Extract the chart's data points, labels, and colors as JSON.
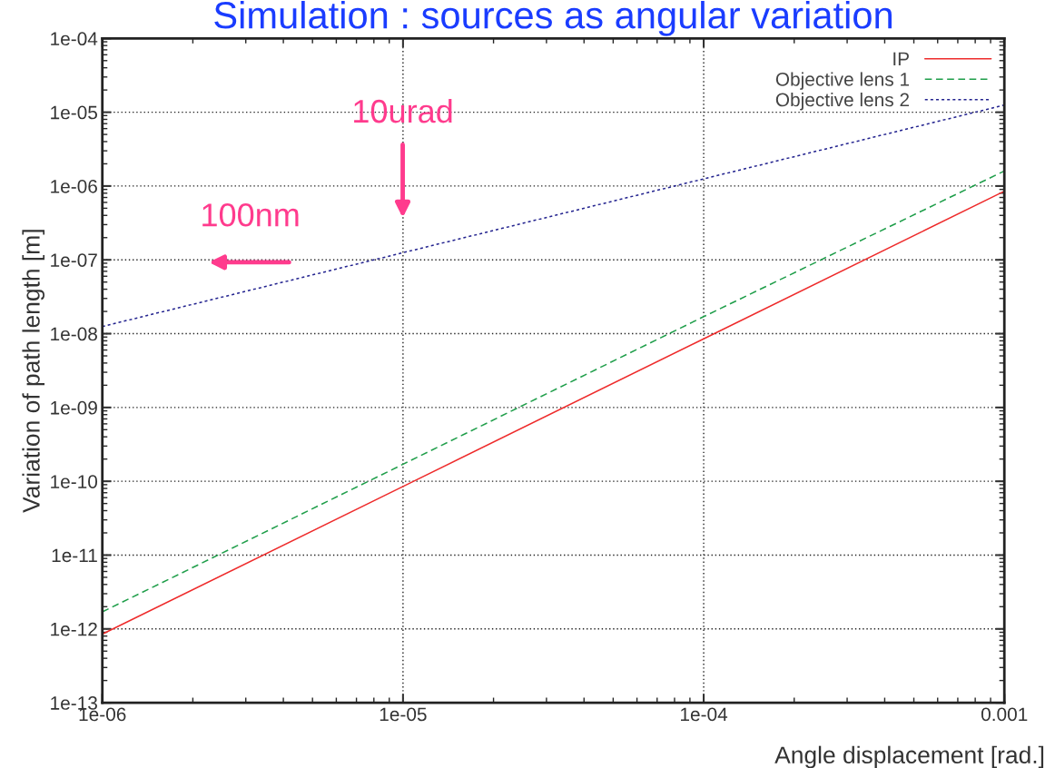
{
  "chart_data": {
    "type": "line",
    "title": "Simulation : sources as angular variation",
    "xlabel": "Angle displacement [rad.]",
    "ylabel": "Variation of path length [m]",
    "x": [
      1e-06,
      1e-05,
      0.0001,
      0.001
    ],
    "series": [
      {
        "name": "IP",
        "color": "#ee2b2b",
        "line_style": "solid",
        "values": [
          8.5e-13,
          8.5e-11,
          8.5e-09,
          8.5e-07
        ]
      },
      {
        "name": "Objective lens 1",
        "color": "#1f9e4a",
        "line_style": "dashed",
        "values": [
          1.7e-12,
          1.7e-10,
          1.7e-08,
          1.6e-06
        ]
      },
      {
        "name": "Objective lens 2",
        "color": "#23238f",
        "line_style": "dotted",
        "values": [
          1.25e-08,
          1.25e-07,
          1.25e-06,
          1.25e-05
        ]
      }
    ],
    "log": "xy",
    "xlim": [
      1e-06,
      0.001
    ],
    "ylim": [
      1e-13,
      0.0001
    ],
    "xticks": [
      {
        "value": 1e-06,
        "label": "1e-06"
      },
      {
        "value": 1e-05,
        "label": "1e-05"
      },
      {
        "value": 0.0001,
        "label": "1e-04"
      },
      0.001
    ],
    "yticks": [
      {
        "value": 1e-13,
        "label": "1e-13"
      },
      {
        "value": 1e-12,
        "label": "1e-12"
      },
      {
        "value": 1e-11,
        "label": "1e-11"
      },
      {
        "value": 1e-10,
        "label": "1e-10"
      },
      {
        "value": 1e-09,
        "label": "1e-09"
      },
      {
        "value": 1e-08,
        "label": "1e-08"
      },
      {
        "value": 1e-07,
        "label": "1e-07"
      },
      {
        "value": 1e-06,
        "label": "1e-06"
      },
      {
        "value": 1e-05,
        "label": "1e-05"
      },
      {
        "value": 0.0001,
        "label": "1e-04"
      }
    ],
    "grid": true,
    "legend": "top right",
    "marker": "none",
    "annotations": [
      "10urad",
      "100nm"
    ]
  }
}
